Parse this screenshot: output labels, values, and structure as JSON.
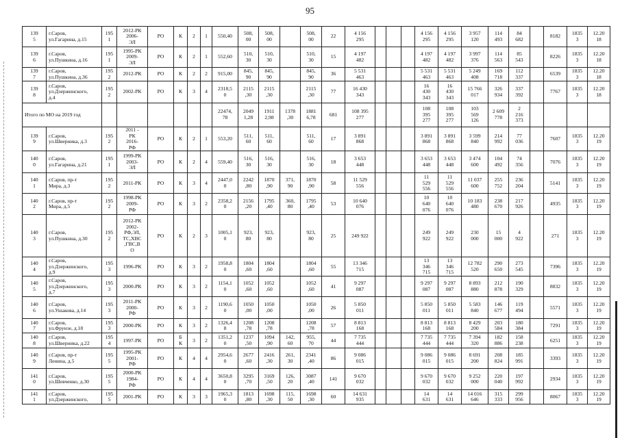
{
  "page_number": "95",
  "total_row": {
    "label": "Итого по МО на 2019 год",
    "cells": [
      "",
      "",
      "",
      "",
      "",
      "",
      "22474,\n78",
      "2049\n1,28",
      "1911\n2,98",
      "1378\n,30",
      "1881\n6,78",
      "681",
      "108 395\n277",
      "",
      "",
      "",
      "108\n395\n277",
      "108\n395\n277",
      "103\n569\n126",
      "2 609\n778",
      "2\n216\n373",
      "",
      "",
      "",
      ""
    ]
  },
  "rows": [
    [
      "139\n5",
      "г.Саров,\nул.Гагарина, д.15",
      "195\n1",
      "2012-РК\n2006-\nЭЛ",
      "РО",
      "К",
      "2",
      "1",
      "550,40",
      "508,\n00",
      "508,\n00",
      "",
      "508,\n00",
      "22",
      "4 156\n295",
      "",
      "",
      "",
      "4 156\n295",
      "4 156\n295",
      "3 957\n120",
      "114\n493",
      "84\n682",
      "",
      "8182",
      "1835\n3",
      "12.20\n18"
    ],
    [
      "139\n6",
      "г.Саров,\nул.Пушкина, д.16",
      "195\n1",
      "1995-РК\n2009-\nЭЛ",
      "РО",
      "К",
      "2",
      "1",
      "552,60",
      "510,\n30",
      "510,\n30",
      "",
      "510,\n30",
      "15",
      "4 197\n482",
      "",
      "",
      "",
      "4 197\n482",
      "4 197\n482",
      "3 997\n376",
      "114\n563",
      "85\n543",
      "",
      "8226",
      "1835\n3",
      "12.20\n18"
    ],
    [
      "139\n7",
      "г.Саров,\nул.Пушкина, д.36",
      "195\n2",
      "2012-РК",
      "РО",
      "К",
      "2",
      "2",
      "915,00",
      "845,\n90",
      "845,\n90",
      "",
      "845,\n90",
      "36",
      "5 531\n463",
      "",
      "",
      "",
      "5 531\n463",
      "5 531\n463",
      "5 249\n408",
      "169\n718",
      "112\n337",
      "",
      "6539",
      "1835\n3",
      "12.20\n18"
    ],
    [
      "139\n8",
      "г.Саров,\nул.Дзержинского,\nд.4",
      "195\n2",
      "2002-РК",
      "РО",
      "К",
      "3",
      "4",
      "2318,5\n0",
      "2115\n,30",
      "2115\n,30",
      "",
      "2115\n,30",
      "77",
      "16 430\n343",
      "",
      "",
      "",
      "16\n430\n343",
      "16\n430\n343",
      "15 766\n017",
      "326\n934",
      "337\n392",
      "",
      "7767",
      "1835\n3",
      "12.20\n18"
    ],
    "TOTAL",
    [
      "139\n9",
      "г.Саров,\nул.Шверника, д.3",
      "195\n2",
      "2011 -\nРК\n2016-\nРФ",
      "РО",
      "К",
      "2",
      "1",
      "553,20",
      "511,\n60",
      "511,\n60",
      "",
      "511,\n60",
      "17",
      "3 891\n868",
      "",
      "",
      "",
      "3 891\n868",
      "3 891\n868",
      "3 599\n840",
      "214\n992",
      "77\n036",
      "",
      "7607",
      "1835\n3",
      "12.20\n19"
    ],
    [
      "140\n0",
      "г.Саров,\nул.Гагарина, д.21",
      "195\n1",
      "1999-РК\n2003-\nЭЛ",
      "РО",
      "К",
      "2",
      "4",
      "559,40",
      "516,\n30",
      "516,\n30",
      "",
      "516,\n30",
      "18",
      "3 653\n448",
      "",
      "",
      "",
      "3 653\n448",
      "3 653\n448",
      "3 474\n600",
      "104\n492",
      "74\n356",
      "",
      "7076",
      "1835\n3",
      "12.20\n19"
    ],
    [
      "140\n1",
      "г.Саров, пр-т\nМира, д.3",
      "195\n2",
      "2011-РК",
      "РО",
      "К",
      "3",
      "4",
      "2447,0\n0",
      "2242\n,80",
      "1870\n,90",
      "371,\n90",
      "1870\n,90",
      "58",
      "11 529\n556",
      "",
      "",
      "",
      "11\n529\n556",
      "11\n529\n556",
      "11 037\n600",
      "255\n752",
      "236\n204",
      "",
      "5141",
      "1835\n3",
      "12.20\n19"
    ],
    [
      "140\n2",
      "г.Саров, пр-т\nМира, д.5",
      "195\n2",
      "1998-РК\n2009-\nРФ",
      "РО",
      "К",
      "3",
      "2",
      "2358,2\n0",
      "2156\n,20",
      "1795\n,40",
      "360,\n80",
      "1795\n,40",
      "53",
      "10 640\n076",
      "",
      "",
      "",
      "10\n640\n076",
      "10\n640\n076",
      "10 183\n480",
      "238\n670",
      "217\n926",
      "",
      "4935",
      "1835\n3",
      "12.20\n19"
    ],
    [
      "140\n3",
      "г.Саров,\nул.Пушкина, д.30",
      "195\n2",
      "2012-РК\n2002-\nРФ,ЭЛ,\nТС,ХВС\n,ГВС,В\nО",
      "РО",
      "К",
      "2",
      "3",
      "1005,1\n0",
      "923,\n80",
      "923,\n80",
      "",
      "923,\n80",
      "25",
      "249 922",
      "",
      "",
      "",
      "249\n922",
      "249\n922",
      "230\n000",
      "15\n000",
      "4\n922",
      "",
      "271",
      "1835\n3",
      "12.20\n19"
    ],
    [
      "140\n4",
      "г.Саров,\nул.Дзержинского,\nд.9",
      "195\n3",
      "1996-РК",
      "РО",
      "К",
      "3",
      "2",
      "1958,8\n0",
      "1804\n,60",
      "1804\n,60",
      "",
      "1804\n,60",
      "55",
      "13 346\n715",
      "",
      "",
      "",
      "13\n346\n715",
      "13\n346\n715",
      "12 782\n520",
      "290\n650",
      "273\n545",
      "",
      "7396",
      "1835\n3",
      "12.20\n19"
    ],
    [
      "140\n5",
      "г.Саров,\nул.Дзержинского,\nд.7",
      "195\n3",
      "2000-РК",
      "РО",
      "К",
      "3",
      "2",
      "1154,1\n0",
      "1052\n,60",
      "1052\n,60",
      "",
      "1052\n,60",
      "41",
      "9 297\n087",
      "",
      "",
      "",
      "9 297\n087",
      "9 297\n087",
      "8 893\n880",
      "212\n878",
      "190\n329",
      "",
      "8832",
      "1835\n3",
      "12.20\n19"
    ],
    [
      "140\n6",
      "г.Саров,\nул.Ушакова, д.14",
      "195\n3",
      "2011-РК\n2000-\nРФ",
      "РО",
      "К",
      "3",
      "2",
      "1190,6\n0",
      "1050\n,00",
      "1050\n,00",
      "",
      "1050\n,00",
      "26",
      "5 850\n011",
      "",
      "",
      "",
      "5 850\n011",
      "5 850\n011",
      "5 583\n840",
      "146\n677",
      "119\n494",
      "",
      "5571",
      "1835\n3",
      "12.20\n19"
    ],
    [
      "140\n7",
      "г.Саров,\nул.Фрунзе, д.18",
      "195\n3",
      "2000-РК",
      "РО",
      "К",
      "3",
      "2",
      "1326,4\n8",
      "1208\n,78",
      "1208\n,78",
      "",
      "1208\n,78",
      "57",
      "8 813\n168",
      "",
      "",
      "",
      "8 813\n168",
      "8 813\n168",
      "8 429\n200",
      "203\n584",
      "180\n384",
      "",
      "7291",
      "1835\n3",
      "12.20\n19"
    ],
    [
      "140\n8",
      "г.Саров,\nул.Шверника, д.22",
      "195\n4",
      "1997-РК",
      "РО",
      "Б\nК",
      "3",
      "2",
      "1351,2\n0",
      "1237\n,50",
      "1094\n,90",
      "142,\n60",
      "955,\n70",
      "44",
      "7 735\n444",
      "",
      "",
      "",
      "7 735\n444",
      "7 735\n444",
      "7 394\n320",
      "182\n886",
      "158\n238",
      "",
      "6251",
      "1835\n3",
      "12.20\n19"
    ],
    [
      "140\n9",
      "г.Саров, пр-т\nЛенина, д.5",
      "195\n5",
      "1995-РК\n2001-\nРФ",
      "РО",
      "К",
      "4",
      "4",
      "2954,6\n0",
      "2677\n,60",
      "2416\n,30",
      "261,\n30",
      "2341\n,40",
      "86",
      "9 086\n015",
      "",
      "",
      "",
      "9 086\n015",
      "9 086\n015",
      "8 691\n200",
      "208\n824",
      "185\n991",
      "",
      "3393",
      "1835\n3",
      "12.20\n19"
    ],
    [
      "141\n0",
      "г.Саров,\nул.Шевченко, д.30",
      "195\n5",
      "2000-РК\n1984-\nРФ",
      "РО",
      "К",
      "4",
      "4",
      "3650,8\n0",
      "3295\n,70",
      "3169\n,50",
      "126,\n20",
      "3087\n,40",
      "141",
      "9 670\n032",
      "",
      "",
      "",
      "9 670\n032",
      "9 670\n032",
      "9 252\n000",
      "220\n040",
      "197\n992",
      "",
      "2934",
      "1835\n3",
      "12.20\n19"
    ],
    [
      "141\n1",
      "г.Саров,\nул.Дзержинского,",
      "195\n5",
      "2001-РК",
      "РО",
      "К",
      "3",
      "3",
      "1965,3\n0",
      "1813\n,80",
      "1698\n,30",
      "115,\n50",
      "1698\n,30",
      "60",
      "14 631\n935",
      "",
      "",
      "",
      "14\n631",
      "14\n631",
      "14 016\n646",
      "315\n333",
      "299\n956",
      "",
      "8067",
      "1835\n3",
      "12.20\n19"
    ]
  ]
}
